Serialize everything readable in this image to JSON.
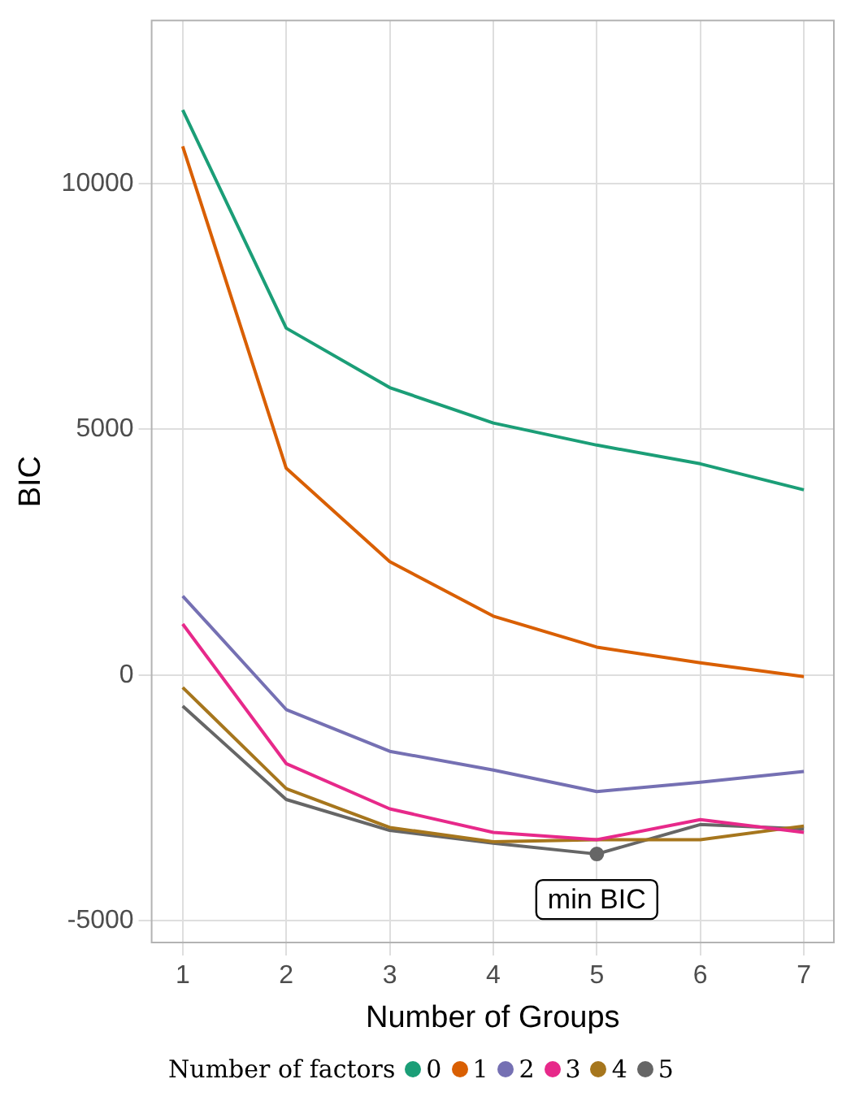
{
  "chart_data": {
    "type": "line",
    "xlabel": "Number of Groups",
    "ylabel": "BIC",
    "legend_title": "Number of factors",
    "legend": "bottom",
    "grid": true,
    "marker": "none",
    "line_style": "solid",
    "x": [
      1,
      2,
      3,
      4,
      5,
      6,
      7
    ],
    "xlim": [
      0.7,
      7.29
    ],
    "xticks": [
      1,
      2,
      3,
      4,
      5,
      6,
      7
    ],
    "ylim": [
      -5440,
      13320
    ],
    "yticks": [
      -5000,
      0,
      5000,
      10000
    ],
    "series": [
      {
        "name": "0",
        "color": "#1b9e77",
        "values": [
          11500,
          7060,
          5850,
          5130,
          4680,
          4300,
          3770
        ]
      },
      {
        "name": "1",
        "color": "#d95f02",
        "values": [
          10760,
          4210,
          2310,
          1200,
          570,
          250,
          -30
        ]
      },
      {
        "name": "2",
        "color": "#7570b3",
        "values": [
          1610,
          -700,
          -1550,
          -1930,
          -2370,
          -2180,
          -1960
        ]
      },
      {
        "name": "3",
        "color": "#e7298a",
        "values": [
          1040,
          -1800,
          -2720,
          -3200,
          -3350,
          -2940,
          -3200
        ]
      },
      {
        "name": "4",
        "color": "#a6761d",
        "values": [
          -250,
          -2310,
          -3100,
          -3390,
          -3350,
          -3350,
          -3070
        ]
      },
      {
        "name": "5",
        "color": "#666666",
        "values": [
          -630,
          -2530,
          -3160,
          -3420,
          -3640,
          -3040,
          -3130
        ]
      },
      {
        "type": "scatter",
        "color": "#666666",
        "x": [
          5
        ],
        "values": [
          -3640
        ],
        "marker": "circle"
      }
    ],
    "annotations": [
      {
        "text": "min BIC",
        "x": 5,
        "y": -3640
      }
    ]
  }
}
